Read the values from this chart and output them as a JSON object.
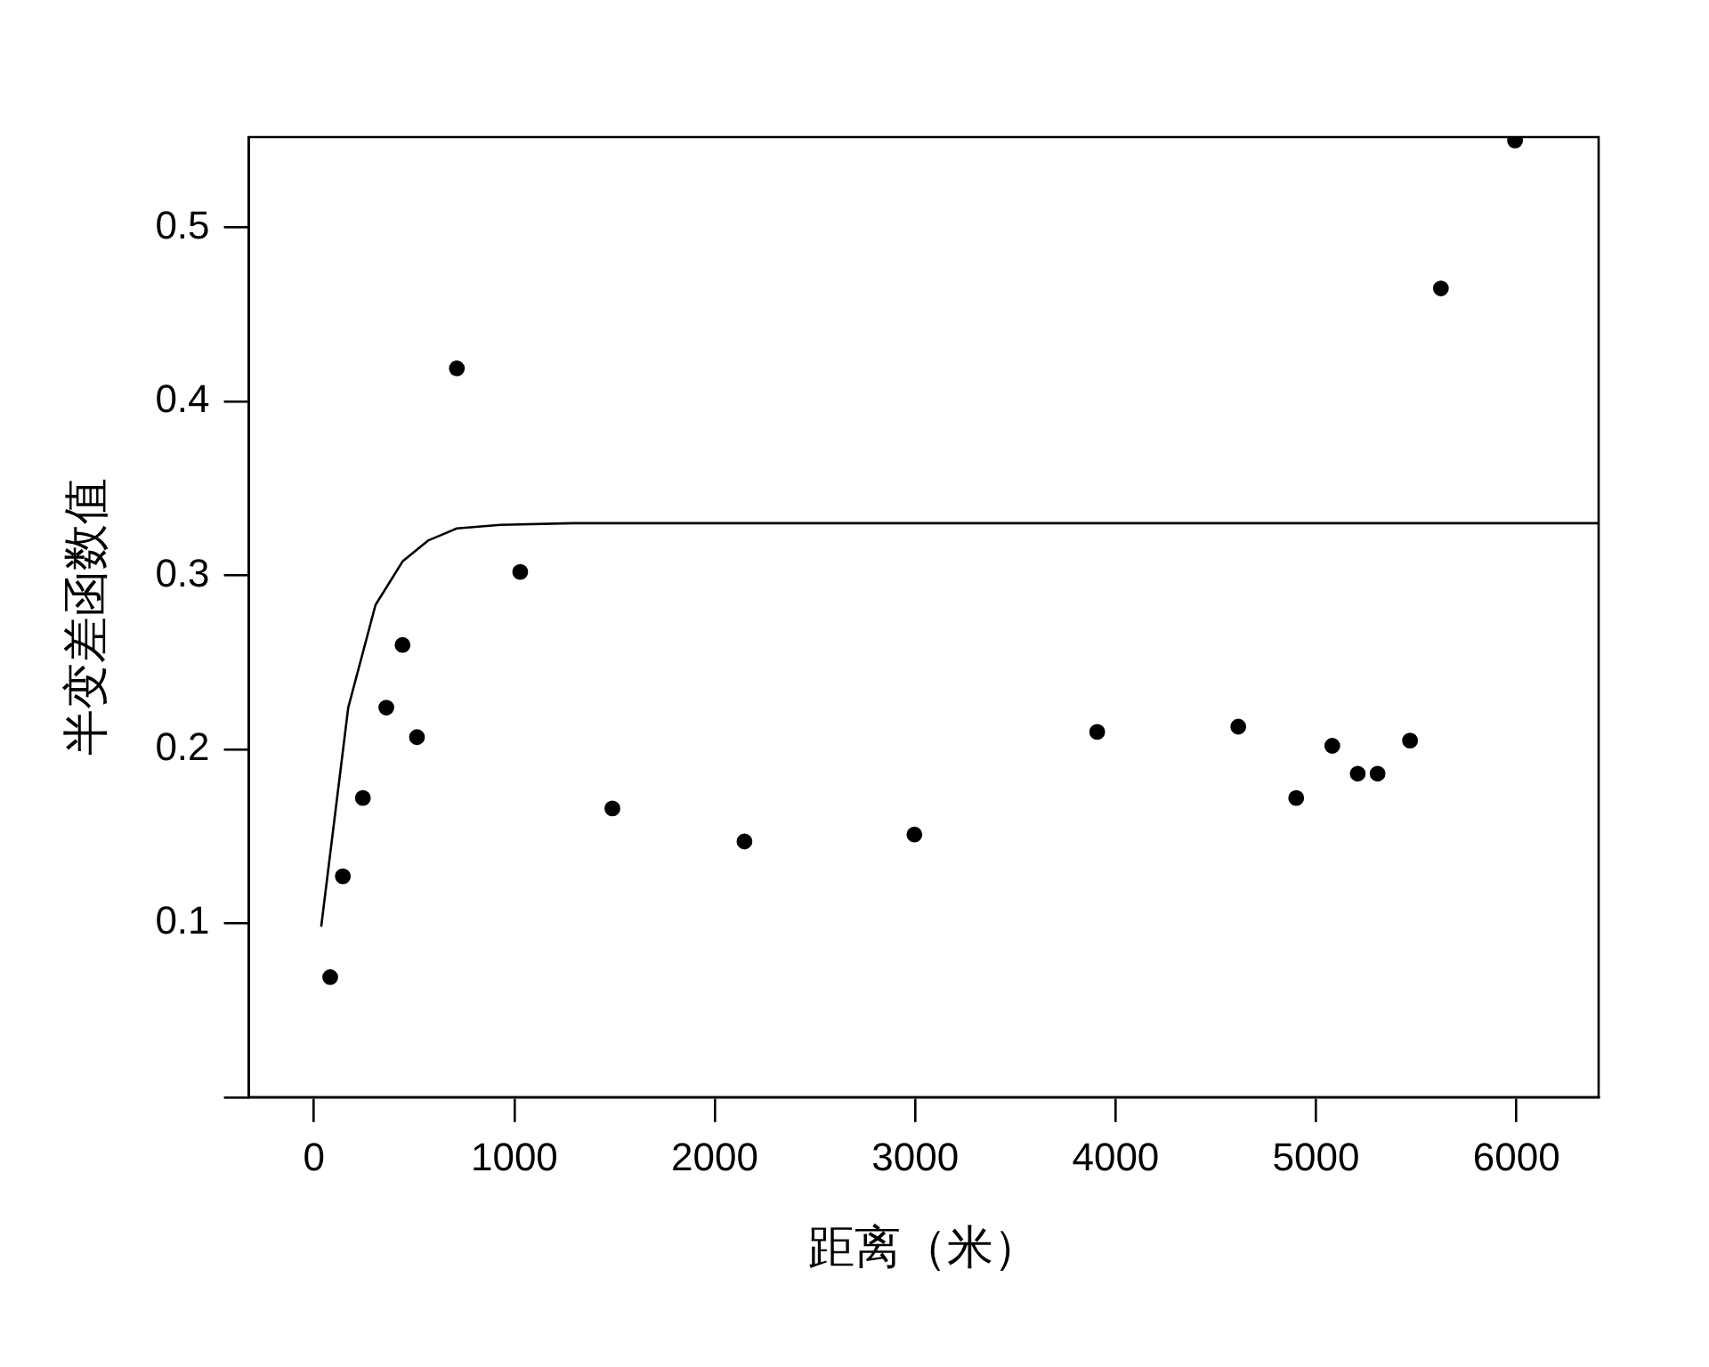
{
  "chart_data": {
    "type": "scatter",
    "xlabel": "距离（米）",
    "ylabel": "半变差函数值",
    "xlim": [
      -325,
      6410
    ],
    "ylim": [
      0,
      0.552
    ],
    "xticks": [
      0,
      1000,
      2000,
      3000,
      4000,
      5000,
      6000
    ],
    "yticks": [
      {
        "value": 0,
        "label": null
      },
      0.1,
      0.2,
      0.3,
      0.4,
      0.5
    ],
    "grid": false,
    "marker": "circle",
    "series": [
      {
        "type": "scatter",
        "color": "#000000",
        "x": [
          81,
          144,
          244,
          361,
          442,
          514,
          713,
          1029,
          1489,
          2148,
          2996,
          3908,
          4612,
          4901,
          5081,
          5208,
          5307,
          5469,
          5623,
          5993
        ],
        "values": [
          0.069,
          0.127,
          0.172,
          0.224,
          0.26,
          0.207,
          0.419,
          0.302,
          0.166,
          0.147,
          0.151,
          0.21,
          0.213,
          0.172,
          0.202,
          0.186,
          0.186,
          0.205,
          0.465,
          0.55
        ]
      },
      {
        "type": "line",
        "color": "#000000",
        "marker": "none",
        "line_style": "solid",
        "x": [
          36,
          171,
          307,
          442,
          569,
          713,
          930,
          1290,
          2000,
          4000,
          6410
        ],
        "values": [
          0.098,
          0.224,
          0.283,
          0.308,
          0.32,
          0.327,
          0.329,
          0.33,
          0.33,
          0.33,
          0.33
        ]
      }
    ]
  }
}
